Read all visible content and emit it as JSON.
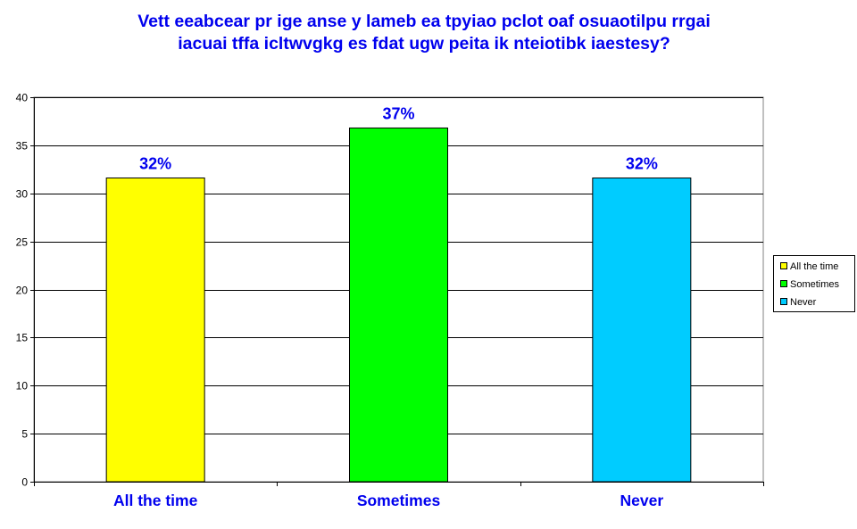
{
  "chart_data": {
    "type": "bar",
    "title_lines": [
      "Vett eeabcear pr ige anse y lameb ea tpyiao pclot oaf osuaotilpu rrgai",
      "iacuai tffa icltwvgkg es fdat ugw peita ik nteiotibk iaestesy?"
    ],
    "categories": [
      "All the time",
      "Sometimes",
      "Never"
    ],
    "values": [
      31.6,
      36.8,
      31.6
    ],
    "data_labels": [
      "32%",
      "37%",
      "32%"
    ],
    "colors": [
      "#ffff00",
      "#00ff00",
      "#00ccff"
    ],
    "ylim": [
      0,
      40
    ],
    "yticks": [
      "0",
      "5",
      "10",
      "15",
      "20",
      "25",
      "30",
      "35",
      "40"
    ],
    "grid": true,
    "legend": {
      "placement": "right",
      "entries": [
        "All the time",
        "Sometimes",
        "Never"
      ]
    }
  }
}
